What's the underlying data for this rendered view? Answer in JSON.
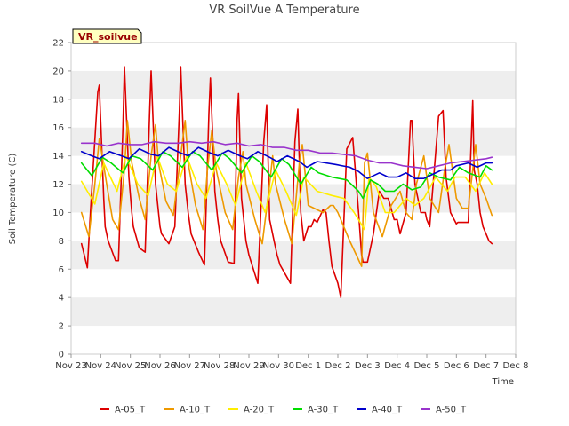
{
  "chart_data": {
    "type": "line",
    "title": "VR SoilVue A Temperature",
    "xlabel": "Time",
    "ylabel": "Soil Temperature (C)",
    "station_label": "VR_soilvue",
    "ylim": [
      0,
      22
    ],
    "yticks": [
      0,
      2,
      4,
      6,
      8,
      10,
      12,
      14,
      16,
      18,
      20,
      22
    ],
    "xlim": [
      0,
      15
    ],
    "xticks": [
      0,
      1,
      2,
      3,
      4,
      5,
      6,
      7,
      8,
      9,
      10,
      11,
      12,
      13,
      14,
      15
    ],
    "xtick_labels": [
      "Nov 23",
      "Nov 24",
      "Nov 25",
      "Nov 26",
      "Nov 27",
      "Nov 28",
      "Nov 29",
      "Nov 30",
      "Dec 1",
      "Dec 2",
      "Dec 3",
      "Dec 4",
      "Dec 5",
      "Dec 6",
      "Dec 7",
      "Dec 8"
    ],
    "grid": "horizontal bands",
    "legend_position": "bottom",
    "colors": {
      "band": "#eeeeee",
      "plot_bg": "#ffffff",
      "station_box_bg": "#ffffc0"
    },
    "series": [
      {
        "name": "A-05_T",
        "color": "#dd0000",
        "x": [
          0.35,
          0.55,
          0.65,
          0.9,
          0.95,
          1.1,
          1.15,
          1.25,
          1.5,
          1.6,
          1.75,
          1.8,
          1.95,
          2.05,
          2.1,
          2.3,
          2.5,
          2.65,
          2.7,
          2.85,
          3.0,
          3.05,
          3.3,
          3.5,
          3.65,
          3.7,
          3.85,
          3.95,
          4.05,
          4.3,
          4.5,
          4.65,
          4.7,
          4.85,
          4.95,
          5.05,
          5.3,
          5.5,
          5.6,
          5.65,
          5.75,
          5.9,
          6.0,
          6.3,
          6.5,
          6.6,
          6.7,
          6.85,
          6.95,
          7.05,
          7.4,
          7.55,
          7.65,
          7.75,
          7.85,
          8.0,
          8.1,
          8.2,
          8.3,
          8.5,
          8.6,
          8.7,
          8.8,
          9.0,
          9.1,
          9.3,
          9.5,
          9.7,
          9.8,
          9.85,
          10.0,
          10.05,
          10.2,
          10.4,
          10.55,
          10.7,
          10.9,
          11.0,
          11.1,
          11.3,
          11.45,
          11.5,
          11.6,
          11.8,
          11.95,
          12.0,
          12.1,
          12.4,
          12.55,
          12.65,
          12.8,
          13.0,
          13.05,
          13.1,
          13.4,
          13.55,
          13.6,
          13.7,
          13.8,
          13.9,
          14.1,
          14.2
        ],
        "y": [
          7.8,
          6.1,
          10.0,
          18.5,
          19.0,
          11.0,
          9.0,
          8.0,
          6.6,
          6.6,
          16.0,
          20.3,
          12.5,
          10.0,
          9.0,
          7.5,
          7.2,
          17.0,
          20.0,
          12.0,
          9.0,
          8.5,
          7.8,
          9.0,
          17.0,
          20.3,
          12.0,
          10.0,
          8.5,
          7.2,
          6.3,
          17.0,
          19.5,
          11.5,
          9.5,
          8.0,
          6.5,
          6.4,
          16.5,
          18.4,
          11.0,
          8.0,
          7.0,
          5.0,
          15.0,
          17.6,
          9.5,
          8.0,
          7.0,
          6.3,
          5.0,
          15.0,
          17.3,
          10.0,
          8.0,
          9.0,
          9.0,
          9.5,
          9.3,
          10.2,
          10.0,
          8.0,
          6.2,
          5.0,
          4.0,
          14.5,
          15.3,
          10.0,
          7.0,
          6.5,
          6.5,
          7.0,
          8.5,
          11.5,
          11.0,
          11.0,
          9.5,
          9.5,
          8.5,
          10.0,
          16.5,
          16.5,
          12.0,
          10.0,
          10.0,
          9.5,
          9.0,
          16.8,
          17.2,
          12.5,
          10.0,
          9.2,
          9.3,
          9.3,
          9.3,
          17.9,
          13.0,
          12.0,
          10.0,
          9.0,
          8.0,
          7.8
        ]
      },
      {
        "name": "A-10_T",
        "color": "#ee9900",
        "x": [
          0.35,
          0.6,
          0.8,
          0.95,
          1.05,
          1.2,
          1.4,
          1.6,
          1.8,
          1.9,
          2.05,
          2.3,
          2.5,
          2.7,
          2.85,
          2.95,
          3.2,
          3.45,
          3.7,
          3.85,
          3.95,
          4.2,
          4.45,
          4.6,
          4.75,
          4.9,
          5.2,
          5.45,
          5.65,
          5.8,
          5.9,
          6.2,
          6.45,
          6.7,
          6.8,
          6.9,
          7.2,
          7.45,
          7.7,
          7.8,
          8.0,
          8.5,
          8.75,
          8.85,
          9.0,
          9.4,
          9.8,
          9.9,
          10.0,
          10.2,
          10.5,
          10.8,
          11.1,
          11.3,
          11.5,
          11.65,
          11.9,
          12.1,
          12.4,
          12.6,
          12.75,
          13.0,
          13.2,
          13.4,
          13.65,
          13.8,
          14.0,
          14.2
        ],
        "y": [
          10.0,
          8.3,
          12.0,
          15.2,
          14.0,
          12.0,
          9.5,
          8.8,
          13.0,
          16.5,
          13.5,
          11.0,
          9.5,
          14.0,
          16.2,
          13.5,
          10.8,
          9.8,
          14.0,
          16.5,
          13.5,
          10.5,
          8.8,
          13.0,
          15.8,
          13.0,
          10.0,
          8.8,
          12.5,
          14.3,
          12.0,
          9.5,
          7.8,
          12.0,
          14.0,
          12.0,
          9.5,
          7.8,
          13.5,
          14.8,
          10.5,
          10.0,
          10.5,
          10.5,
          10.0,
          8.0,
          6.2,
          13.5,
          14.2,
          10.0,
          8.3,
          10.5,
          11.5,
          10.0,
          9.5,
          12.0,
          14.0,
          11.0,
          10.0,
          13.0,
          14.8,
          11.0,
          10.3,
          10.3,
          14.8,
          12.0,
          11.0,
          9.8
        ]
      },
      {
        "name": "A-20_T",
        "color": "#ffee00",
        "x": [
          0.35,
          0.8,
          1.1,
          1.55,
          1.85,
          2.25,
          2.6,
          2.9,
          3.25,
          3.55,
          3.9,
          4.25,
          4.55,
          4.9,
          5.25,
          5.55,
          5.9,
          6.25,
          6.55,
          6.9,
          7.25,
          7.6,
          7.85,
          8.3,
          8.8,
          9.2,
          9.55,
          9.9,
          10.05,
          10.3,
          10.6,
          10.9,
          11.3,
          11.6,
          11.9,
          12.3,
          12.7,
          12.95,
          13.3,
          13.65,
          13.95,
          14.2
        ],
        "y": [
          12.2,
          10.6,
          13.5,
          11.5,
          14.0,
          12.0,
          11.2,
          14.0,
          12.0,
          11.5,
          14.0,
          12.0,
          11.0,
          13.5,
          12.0,
          10.5,
          13.5,
          11.5,
          10.0,
          13.0,
          11.5,
          9.8,
          12.5,
          11.5,
          11.2,
          11.0,
          10.0,
          8.8,
          12.5,
          11.8,
          10.0,
          10.0,
          11.0,
          10.5,
          11.0,
          12.5,
          11.5,
          12.5,
          12.5,
          11.5,
          12.8,
          12.0
        ]
      },
      {
        "name": "A-30_T",
        "color": "#00dd00",
        "x": [
          0.35,
          0.7,
          1.05,
          1.35,
          1.75,
          2.05,
          2.35,
          2.75,
          3.1,
          3.35,
          3.75,
          4.1,
          4.35,
          4.75,
          5.1,
          5.35,
          5.75,
          6.1,
          6.35,
          6.75,
          7.1,
          7.35,
          7.75,
          8.1,
          8.35,
          8.8,
          9.3,
          9.7,
          9.85,
          10.1,
          10.35,
          10.6,
          10.9,
          11.2,
          11.5,
          11.8,
          12.1,
          12.4,
          12.8,
          13.1,
          13.4,
          13.8,
          14.0,
          14.2
        ],
        "y": [
          13.5,
          12.6,
          13.9,
          13.5,
          12.8,
          14.0,
          13.8,
          13.0,
          14.3,
          14.0,
          13.2,
          14.3,
          14.0,
          13.0,
          14.2,
          13.8,
          12.8,
          14.0,
          13.6,
          12.5,
          13.8,
          13.4,
          12.0,
          13.2,
          12.8,
          12.5,
          12.3,
          11.5,
          11.0,
          12.3,
          12.0,
          11.5,
          11.5,
          12.0,
          11.6,
          11.8,
          12.8,
          12.5,
          12.3,
          13.2,
          12.8,
          12.5,
          13.3,
          13.0
        ]
      },
      {
        "name": "A-40_T",
        "color": "#0000cc",
        "x": [
          0.35,
          0.7,
          0.95,
          1.3,
          1.7,
          1.95,
          2.3,
          2.7,
          2.95,
          3.3,
          3.7,
          3.95,
          4.3,
          4.7,
          4.95,
          5.3,
          5.7,
          5.95,
          6.3,
          6.7,
          6.95,
          7.3,
          7.7,
          7.95,
          8.3,
          8.9,
          9.4,
          9.7,
          10.0,
          10.4,
          10.7,
          11.0,
          11.3,
          11.6,
          11.9,
          12.2,
          12.5,
          12.8,
          13.0,
          13.4,
          13.7,
          14.0,
          14.2
        ],
        "y": [
          14.3,
          14.0,
          13.8,
          14.3,
          14.0,
          13.8,
          14.5,
          14.1,
          14.0,
          14.6,
          14.2,
          14.0,
          14.6,
          14.2,
          14.0,
          14.4,
          14.0,
          13.8,
          14.3,
          13.9,
          13.6,
          14.0,
          13.6,
          13.2,
          13.6,
          13.4,
          13.2,
          12.9,
          12.4,
          12.8,
          12.5,
          12.5,
          12.8,
          12.4,
          12.4,
          12.7,
          13.0,
          13.0,
          13.3,
          13.5,
          13.2,
          13.5,
          13.5
        ]
      },
      {
        "name": "A-50_T",
        "color": "#9933cc",
        "x": [
          0.35,
          0.8,
          1.2,
          1.6,
          2.0,
          2.4,
          2.8,
          3.2,
          3.6,
          4.0,
          4.4,
          4.8,
          5.2,
          5.6,
          6.0,
          6.4,
          6.8,
          7.2,
          7.6,
          8.0,
          8.4,
          8.8,
          9.2,
          9.6,
          10.0,
          10.4,
          10.8,
          11.2,
          11.6,
          12.0,
          12.4,
          12.8,
          13.2,
          13.6,
          14.0,
          14.2
        ],
        "y": [
          14.9,
          14.9,
          14.7,
          14.9,
          14.8,
          14.8,
          15.0,
          14.9,
          14.9,
          15.0,
          14.9,
          15.0,
          14.8,
          14.9,
          14.7,
          14.8,
          14.6,
          14.6,
          14.4,
          14.4,
          14.2,
          14.2,
          14.1,
          14.0,
          13.7,
          13.5,
          13.5,
          13.3,
          13.2,
          13.1,
          13.3,
          13.5,
          13.6,
          13.7,
          13.8,
          13.9
        ]
      }
    ]
  }
}
